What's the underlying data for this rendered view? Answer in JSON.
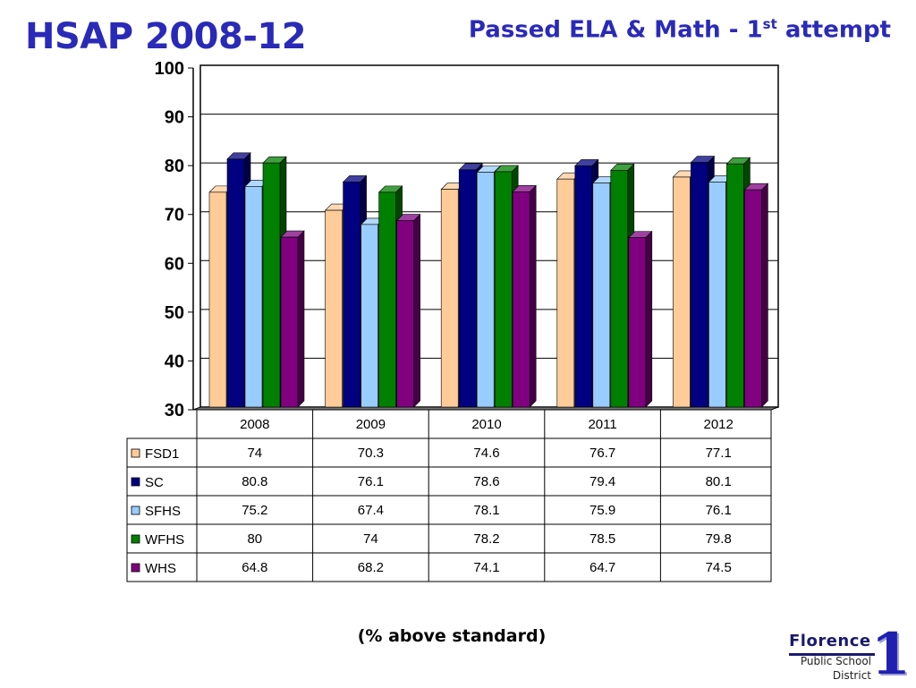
{
  "header": {
    "title": "HSAP 2008-12",
    "subtitle_main": "Passed ELA & Math - 1",
    "subtitle_sup": "st",
    "subtitle_tail": " attempt"
  },
  "footer": {
    "note": "(% above standard)",
    "logo_name": "Florence",
    "logo_sub1": "Public School",
    "logo_sub2": "District",
    "logo_num": "1"
  },
  "chart_data": {
    "type": "bar",
    "categories": [
      "2008",
      "2009",
      "2010",
      "2011",
      "2012"
    ],
    "ylim": [
      30,
      100
    ],
    "yticks": [
      30,
      40,
      50,
      60,
      70,
      80,
      90,
      100
    ],
    "grid": true,
    "legend": "table-left",
    "series": [
      {
        "name": "FSD1",
        "color": "#FFCC99",
        "values": [
          74,
          70.3,
          74.6,
          76.7,
          77.1
        ],
        "labels": [
          "74",
          "70.3",
          "74.6",
          "76.7",
          "77.1"
        ]
      },
      {
        "name": "SC",
        "color": "#000080",
        "values": [
          80.8,
          76.1,
          78.6,
          79.4,
          80.1
        ],
        "labels": [
          "80.8",
          "76.1",
          "78.6",
          "79.4",
          "80.1"
        ]
      },
      {
        "name": "SFHS",
        "color": "#99CCFF",
        "values": [
          75.2,
          67.4,
          78.1,
          75.9,
          76.1
        ],
        "labels": [
          "75.2",
          "67.4",
          "78.1",
          "75.9",
          "76.1"
        ]
      },
      {
        "name": "WFHS",
        "color": "#008000",
        "values": [
          80,
          74,
          78.2,
          78.5,
          79.8
        ],
        "labels": [
          "80",
          "74",
          "78.2",
          "78.5",
          "79.8"
        ]
      },
      {
        "name": "WHS",
        "color": "#800080",
        "values": [
          64.8,
          68.2,
          74.1,
          64.7,
          74.5
        ],
        "labels": [
          "64.8",
          "68.2",
          "74.1",
          "64.7",
          "74.5"
        ]
      }
    ]
  }
}
